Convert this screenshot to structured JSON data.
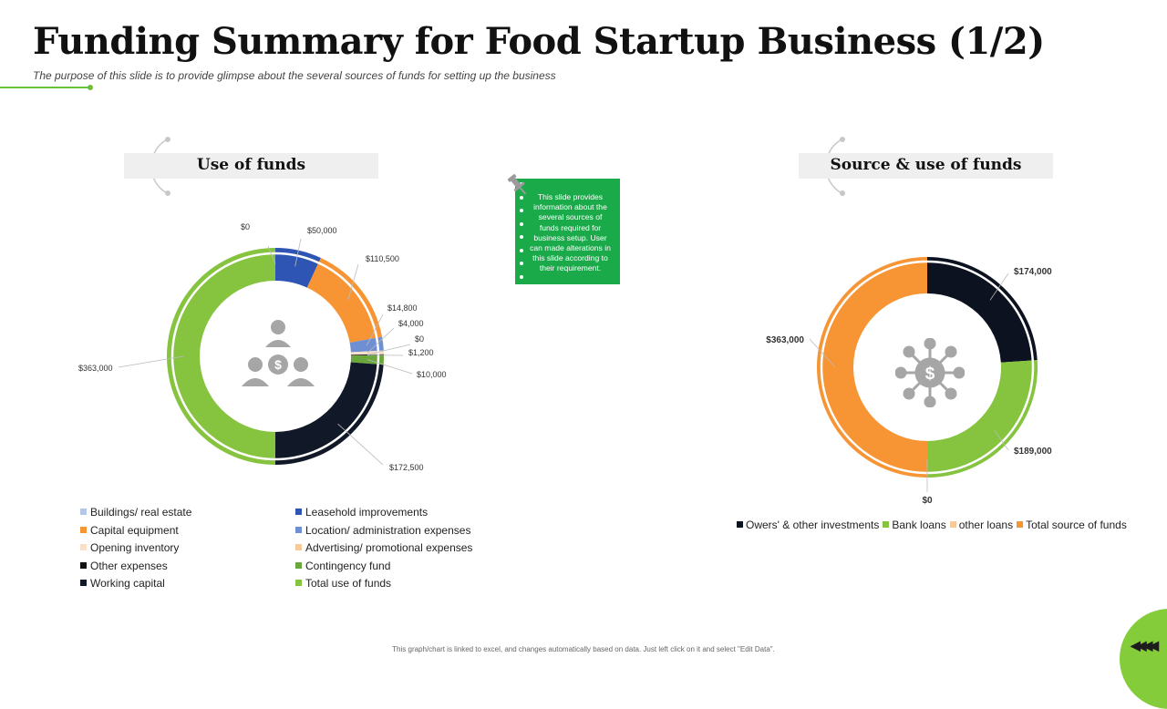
{
  "title": "Funding Summary for Food Startup Business (1/2)",
  "subtitle": "The purpose of this slide is to provide glimpse about the several sources of funds for setting up the business",
  "sections": {
    "use_of_funds": "Use of funds",
    "source_use": "Source & use of funds"
  },
  "note": "This slide provides information about the several sources of funds required for business setup. User can made alterations in this slide according to their requirement.",
  "footer": "This graph/chart is linked to excel, and changes automatically based on data. Just left click on it and select \"Edit Data\".",
  "icons": {
    "chart1_center": "money-people-icon",
    "chart2_center": "money-network-icon",
    "note_pin": "pin-icon",
    "corner": "chevrons-left-icon"
  },
  "chart_data": [
    {
      "type": "pie",
      "title": "Use of funds",
      "categories": [
        "Buildings/ real estate",
        "Leasehold improvements",
        "Capital equipment",
        "Location/ administration expenses",
        "Opening inventory",
        "Advertising/ promotional expenses",
        "Other expenses",
        "Contingency fund",
        "Working capital",
        "Total use of funds"
      ],
      "values": [
        0,
        50000,
        110500,
        14800,
        4000,
        0,
        1200,
        10000,
        172500,
        363000
      ],
      "data_labels": [
        "$0",
        "$50,000",
        "$110,500",
        "$14,800",
        "$4,000",
        "$0",
        "$1,200",
        "$10,000",
        "$172,500",
        "$363,000"
      ],
      "colors": [
        "#b4c7e7",
        "#2f55b4",
        "#f79535",
        "#6f8fd3",
        "#fbe0c8",
        "#f8c99a",
        "#111111",
        "#6aa83b",
        "#111827",
        "#86c440"
      ],
      "legend_position": "bottom"
    },
    {
      "type": "pie",
      "title": "Source & use of funds",
      "categories": [
        "Owers' & other investments",
        "Bank loans",
        "other loans",
        "Total source of funds"
      ],
      "values": [
        174000,
        189000,
        0,
        363000
      ],
      "data_labels": [
        "$174,000",
        "$189,000",
        "$0",
        "$363,000"
      ],
      "colors": [
        "#0d1220",
        "#86c440",
        "#f8c99a",
        "#f79535"
      ],
      "legend_position": "bottom"
    }
  ]
}
